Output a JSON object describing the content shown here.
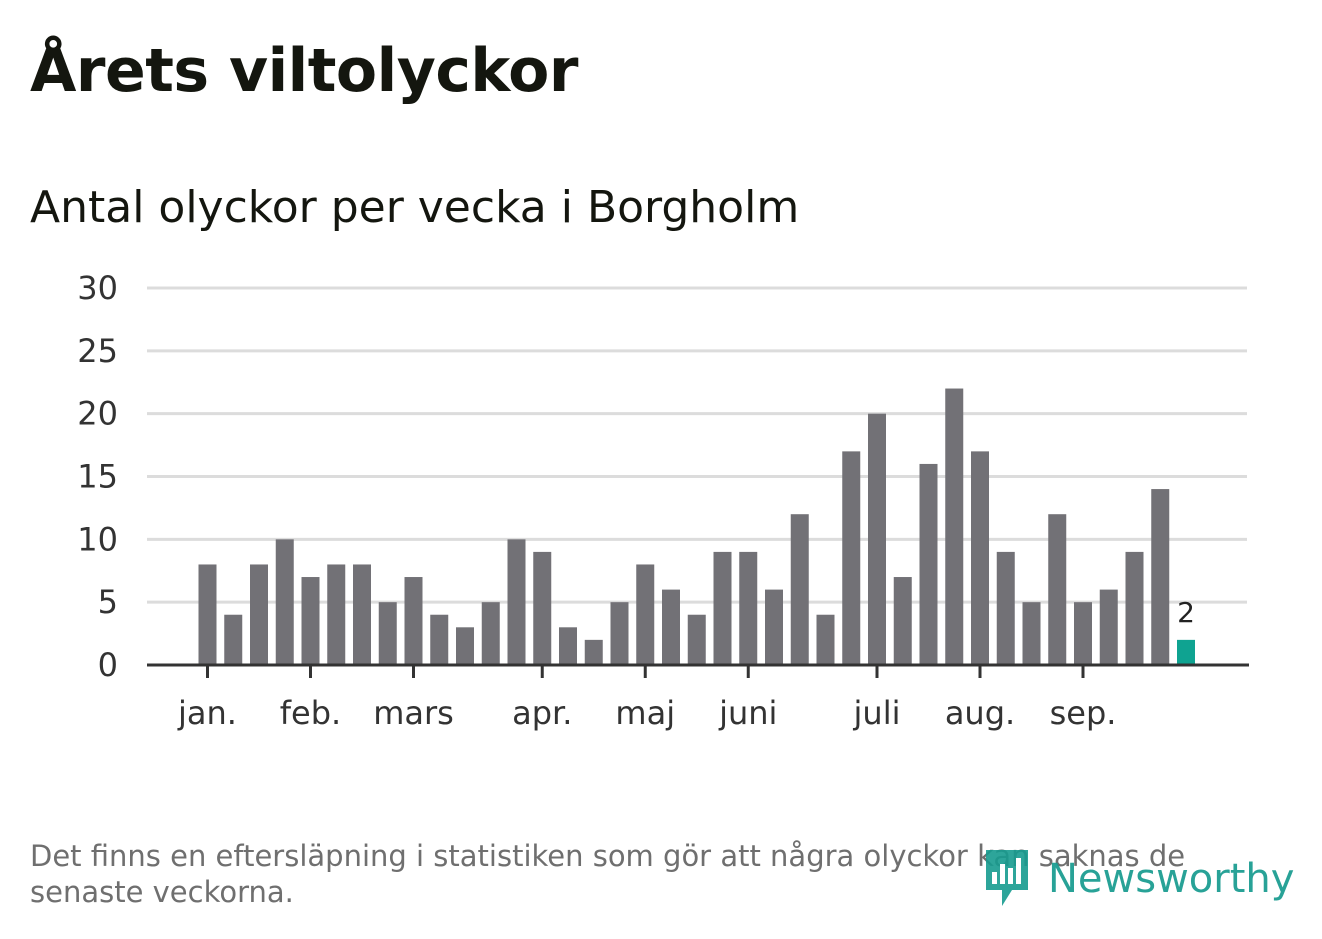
{
  "title": "Årets viltolyckor",
  "subtitle": "Antal olyckor per vecka i Borgholm",
  "footnote": "Det finns en eftersläpning i statistiken som gör att några olyckor kan saknas de senaste veckorna.",
  "brand": {
    "name": "Newsworthy",
    "icon": "chat-bubble-bar-chart-icon",
    "color": "#169b8f"
  },
  "colors": {
    "bar": "#727176",
    "highlight": "#0fa391",
    "grid": "#dcdcdc",
    "axis": "#333333"
  },
  "chart_data": {
    "type": "bar",
    "title": "Antal olyckor per vecka i Borgholm",
    "xlabel": "",
    "ylabel": "",
    "ylim": [
      0,
      30
    ],
    "yticks": [
      0,
      5,
      10,
      15,
      20,
      25,
      30
    ],
    "grid": true,
    "weeks": [
      1,
      2,
      3,
      4,
      5,
      6,
      7,
      8,
      9,
      10,
      11,
      12,
      13,
      14,
      15,
      16,
      17,
      18,
      19,
      20,
      21,
      22,
      23,
      24,
      25,
      26,
      27,
      28,
      29,
      30,
      31,
      32,
      33,
      34,
      35,
      36,
      37,
      38,
      39
    ],
    "values": [
      8,
      4,
      8,
      10,
      7,
      8,
      8,
      5,
      7,
      4,
      3,
      5,
      10,
      9,
      3,
      2,
      5,
      8,
      6,
      4,
      9,
      9,
      6,
      12,
      4,
      17,
      20,
      7,
      16,
      22,
      17,
      9,
      5,
      12,
      5,
      6,
      9,
      14,
      2
    ],
    "highlight_index": 38,
    "highlight_label": "2",
    "month_ticks": [
      {
        "label": "jan.",
        "week": 1
      },
      {
        "label": "feb.",
        "week": 5
      },
      {
        "label": "mars",
        "week": 9
      },
      {
        "label": "apr.",
        "week": 14
      },
      {
        "label": "maj",
        "week": 18
      },
      {
        "label": "juni",
        "week": 22
      },
      {
        "label": "juli",
        "week": 27
      },
      {
        "label": "aug.",
        "week": 31
      },
      {
        "label": "sep.",
        "week": 35
      }
    ]
  }
}
